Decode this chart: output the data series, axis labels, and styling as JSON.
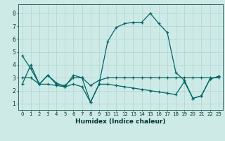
{
  "xlabel": "Humidex (Indice chaleur)",
  "background_color": "#ceeae7",
  "grid_color": "#b0d4d0",
  "line_color": "#006666",
  "xlim": [
    -0.5,
    23.5
  ],
  "ylim": [
    0.5,
    8.7
  ],
  "xticks": [
    0,
    1,
    2,
    3,
    4,
    5,
    6,
    7,
    8,
    9,
    10,
    11,
    12,
    13,
    14,
    15,
    16,
    17,
    18,
    19,
    20,
    21,
    22,
    23
  ],
  "yticks": [
    1,
    2,
    3,
    4,
    5,
    6,
    7,
    8
  ],
  "line1_x": [
    0,
    1,
    2,
    3,
    4,
    5,
    6,
    7,
    8,
    9,
    10,
    11,
    12,
    13,
    14,
    15,
    16,
    17,
    18,
    19,
    20,
    21,
    22,
    23
  ],
  "line1_y": [
    4.7,
    3.7,
    2.5,
    3.2,
    2.5,
    2.4,
    3.0,
    3.0,
    1.1,
    2.5,
    5.8,
    6.9,
    7.2,
    7.3,
    7.3,
    8.0,
    7.2,
    6.5,
    3.4,
    2.8,
    1.4,
    1.6,
    2.9,
    3.1
  ],
  "line2_x": [
    0,
    1,
    2,
    3,
    4,
    5,
    6,
    7,
    8,
    9,
    10,
    11,
    12,
    13,
    14,
    15,
    16,
    17,
    18,
    19,
    20,
    21,
    22,
    23
  ],
  "line2_y": [
    3.0,
    3.0,
    2.5,
    3.2,
    2.6,
    2.3,
    3.2,
    3.0,
    2.4,
    2.8,
    3.0,
    3.0,
    3.0,
    3.0,
    3.0,
    3.0,
    3.0,
    3.0,
    3.0,
    3.0,
    3.0,
    3.0,
    3.0,
    3.0
  ],
  "line3_x": [
    0,
    1,
    2,
    3,
    4,
    5,
    6,
    7,
    8,
    9,
    10,
    11,
    12,
    13,
    14,
    15,
    16,
    17,
    18,
    19,
    20,
    21,
    22,
    23
  ],
  "line3_y": [
    2.5,
    4.0,
    2.5,
    2.5,
    2.4,
    2.3,
    2.5,
    2.3,
    1.1,
    2.5,
    2.5,
    2.4,
    2.3,
    2.2,
    2.1,
    2.0,
    1.9,
    1.8,
    1.7,
    2.7,
    1.4,
    1.6,
    2.9,
    3.1
  ]
}
